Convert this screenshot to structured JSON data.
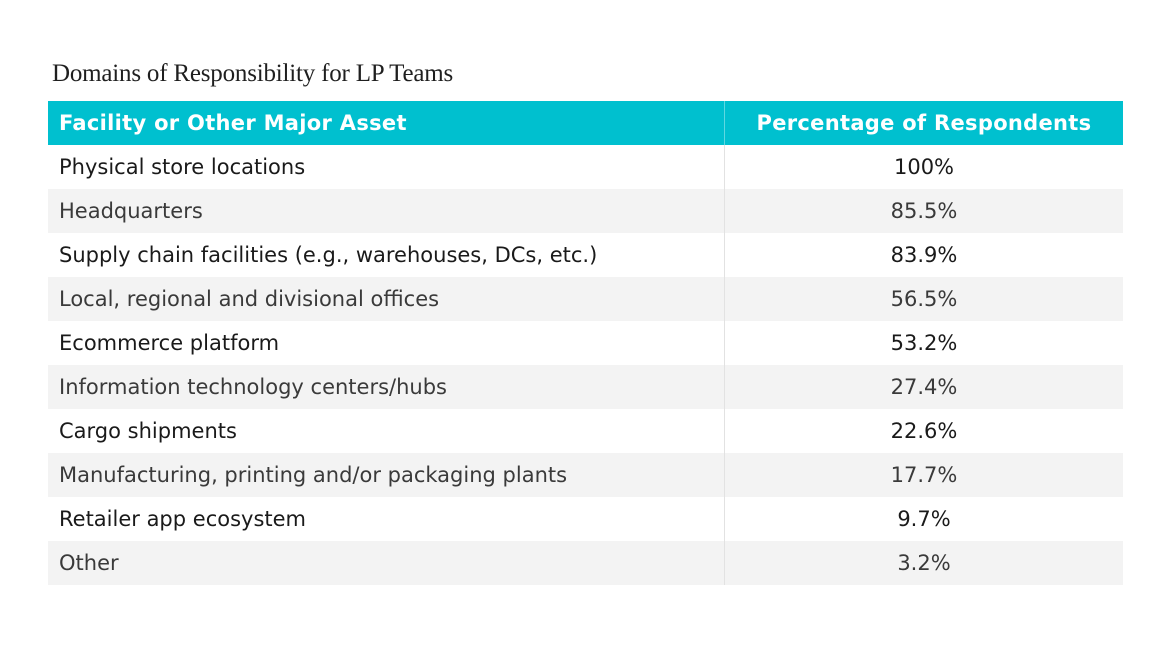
{
  "chart_data": {
    "type": "table",
    "title": "Domains of Responsibility for LP Teams",
    "columns": [
      "Facility or Other Major Asset",
      "Percentage of Respondents"
    ],
    "rows": [
      {
        "asset": "Physical store locations",
        "percentage": "100%",
        "value": 100
      },
      {
        "asset": "Headquarters",
        "percentage": "85.5%",
        "value": 85.5
      },
      {
        "asset": "Supply chain facilities (e.g., warehouses, DCs, etc.)",
        "percentage": "83.9%",
        "value": 83.9
      },
      {
        "asset": "Local, regional and divisional offices",
        "percentage": "56.5%",
        "value": 56.5
      },
      {
        "asset": "Ecommerce platform",
        "percentage": "53.2%",
        "value": 53.2
      },
      {
        "asset": "Information technology centers/hubs",
        "percentage": "27.4%",
        "value": 27.4
      },
      {
        "asset": "Cargo shipments",
        "percentage": "22.6%",
        "value": 22.6
      },
      {
        "asset": "Manufacturing, printing and/or packaging plants",
        "percentage": "17.7%",
        "value": 17.7
      },
      {
        "asset": "Retailer app ecosystem",
        "percentage": "9.7%",
        "value": 9.7
      },
      {
        "asset": "Other",
        "percentage": "3.2%",
        "value": 3.2
      }
    ]
  },
  "colors": {
    "header_background": "#00c0cf",
    "header_text": "#ffffff",
    "alternate_row": "#f3f3f3"
  }
}
